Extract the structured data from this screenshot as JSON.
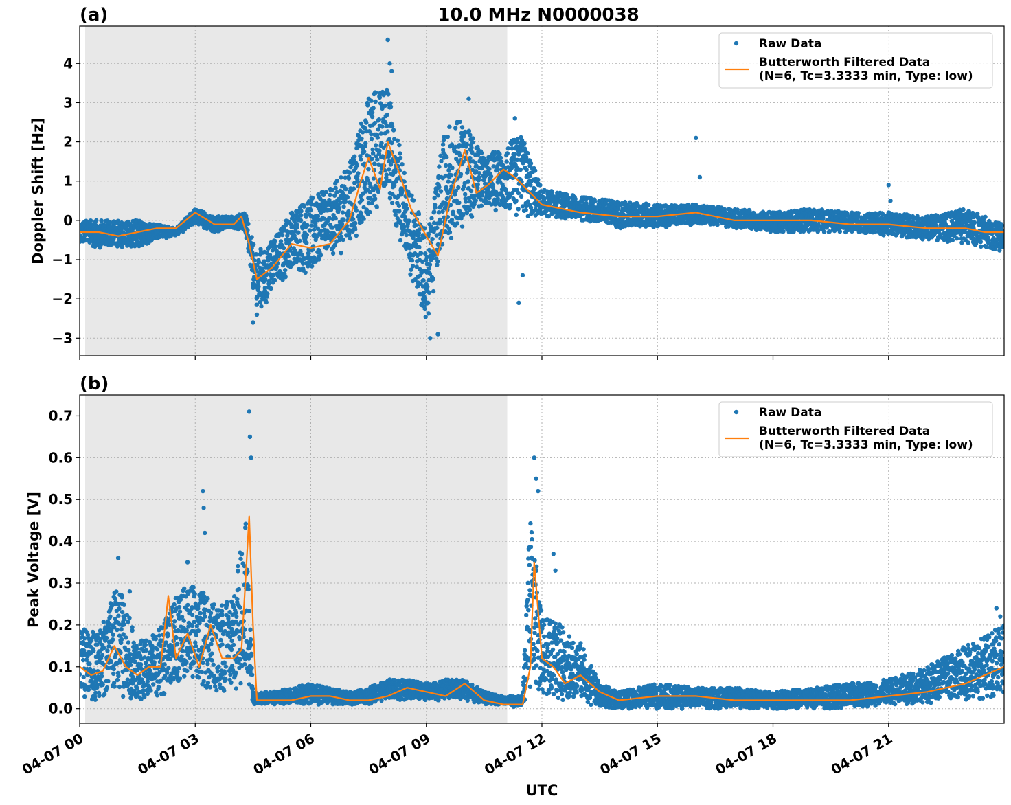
{
  "figure": {
    "title": "10.0 MHz N0000038",
    "xlabel": "UTC"
  },
  "colors": {
    "raw": "#1f77b4",
    "filtered": "#ff7f0e",
    "shade": "#e8e8e8",
    "grid": "#b0b0b0"
  },
  "chart_data": [
    {
      "type": "scatter",
      "panel_label": "(a)",
      "title": "10.0 MHz N0000038",
      "xlabel": "",
      "ylabel": "Doppler Shift [Hz]",
      "xlim": [
        0,
        24
      ],
      "ylim": [
        -3.45,
        4.95
      ],
      "yticks": [
        -3,
        -2,
        -1,
        0,
        1,
        2,
        3,
        4
      ],
      "ytick_labels": [
        "−3",
        "−2",
        "−1",
        "0",
        "1",
        "2",
        "3",
        "4"
      ],
      "xticks": [
        0,
        3,
        6,
        9,
        12,
        15,
        18,
        21
      ],
      "xtick_labels": [
        "",
        "",
        "",
        "",
        "",
        "",
        "",
        ""
      ],
      "grid": true,
      "shaded_interval": [
        0,
        11.1
      ],
      "legend": {
        "position": "top-right",
        "raw_label": "Raw Data",
        "filtered_label_line1": "Butterworth Filtered Data",
        "filtered_label_line2": "(N=6, Tc=3.3333 min, Type: low)"
      },
      "series": [
        {
          "name": "Raw Data",
          "kind": "band",
          "x": [
            0,
            0.5,
            1,
            1.5,
            2,
            2.5,
            3,
            3.5,
            4,
            4.3,
            4.6,
            5,
            5.5,
            6,
            6.5,
            7,
            7.5,
            8,
            8.5,
            9,
            9.5,
            10,
            10.5,
            11,
            11.5,
            12,
            13,
            14,
            15,
            16,
            17,
            18,
            19,
            20,
            21,
            22,
            23,
            24
          ],
          "upper": [
            0,
            0,
            0,
            0,
            -0.1,
            -0.2,
            0.3,
            0.1,
            0.1,
            0.2,
            -0.8,
            -0.5,
            0.2,
            0.6,
            0.8,
            1.4,
            3.2,
            3.4,
            1.0,
            -0.3,
            2.4,
            2.6,
            1.6,
            1.9,
            2.2,
            0.8,
            0.6,
            0.5,
            0.4,
            0.4,
            0.3,
            0.2,
            0.3,
            0.2,
            0.2,
            0.1,
            0.3,
            -0.1
          ],
          "lower": [
            -0.6,
            -0.7,
            -0.7,
            -0.7,
            -0.5,
            -0.4,
            -0.1,
            -0.3,
            -0.2,
            -0.3,
            -2.4,
            -1.9,
            -1.3,
            -1.4,
            -0.9,
            -0.8,
            -0.1,
            0.6,
            -1.2,
            -2.6,
            -0.6,
            -0.1,
            0.3,
            0.2,
            0.0,
            0.1,
            0.0,
            -0.2,
            -0.2,
            -0.1,
            -0.2,
            -0.3,
            -0.3,
            -0.3,
            -0.4,
            -0.5,
            -0.6,
            -0.8
          ]
        },
        {
          "name": "Raw Data",
          "kind": "points",
          "x": [
            8.0,
            8.05,
            8.1,
            9.1,
            9.3,
            10.1,
            11.3,
            11.4,
            11.5,
            16.0,
            16.1,
            21.0,
            21.05,
            4.5,
            4.6
          ],
          "y": [
            4.6,
            4.0,
            3.8,
            -3.0,
            -2.9,
            3.1,
            2.6,
            -2.1,
            -1.4,
            2.1,
            1.1,
            0.9,
            0.5,
            -2.6,
            -2.4
          ]
        },
        {
          "name": "Butterworth Filtered Data",
          "kind": "line",
          "x": [
            0,
            0.5,
            1,
            1.5,
            2,
            2.5,
            3,
            3.5,
            4,
            4.2,
            4.4,
            4.6,
            5,
            5.5,
            6,
            6.5,
            7,
            7.3,
            7.5,
            7.8,
            8.0,
            8.3,
            8.6,
            9.0,
            9.3,
            9.6,
            10.0,
            10.3,
            10.6,
            11.0,
            11.3,
            11.6,
            12.0,
            13,
            14,
            15,
            16,
            17,
            18,
            19,
            20,
            21,
            22,
            23,
            23.5,
            24
          ],
          "y": [
            -0.3,
            -0.3,
            -0.4,
            -0.3,
            -0.2,
            -0.2,
            0.2,
            -0.1,
            -0.1,
            0.1,
            -0.6,
            -1.5,
            -1.2,
            -0.6,
            -0.7,
            -0.6,
            0.0,
            1.0,
            1.6,
            0.8,
            2.0,
            1.2,
            0.3,
            -0.4,
            -0.9,
            0.5,
            1.8,
            0.7,
            0.9,
            1.3,
            1.1,
            0.8,
            0.4,
            0.2,
            0.1,
            0.1,
            0.2,
            0.0,
            0.0,
            0.0,
            -0.1,
            -0.1,
            -0.2,
            -0.2,
            -0.3,
            -0.3
          ]
        }
      ]
    },
    {
      "type": "scatter",
      "panel_label": "(b)",
      "title": "",
      "xlabel": "UTC",
      "ylabel": "Peak Voltage [V]",
      "xlim": [
        0,
        24
      ],
      "ylim": [
        -0.035,
        0.75
      ],
      "yticks": [
        0.0,
        0.1,
        0.2,
        0.3,
        0.4,
        0.5,
        0.6,
        0.7
      ],
      "ytick_labels": [
        "0.0",
        "0.1",
        "0.2",
        "0.3",
        "0.4",
        "0.5",
        "0.6",
        "0.7"
      ],
      "xticks": [
        0,
        3,
        6,
        9,
        12,
        15,
        18,
        21
      ],
      "xtick_labels": [
        "04-07 00",
        "04-07 03",
        "04-07 06",
        "04-07 09",
        "04-07 12",
        "04-07 15",
        "04-07 18",
        "04-07 21"
      ],
      "grid": true,
      "shaded_interval": [
        0,
        11.1
      ],
      "legend": {
        "position": "top-right",
        "raw_label": "Raw Data",
        "filtered_label_line1": "Butterworth Filtered Data",
        "filtered_label_line2": "(N=6, Tc=3.3333 min, Type: low)"
      },
      "series": [
        {
          "name": "Raw Data",
          "kind": "band",
          "x": [
            0,
            0.5,
            1,
            1.5,
            2,
            2.5,
            3,
            3.5,
            4,
            4.3,
            4.5,
            5,
            5.5,
            6,
            6.5,
            7,
            7.5,
            8,
            8.5,
            9,
            9.5,
            10,
            10.5,
            11,
            11.5,
            11.7,
            12,
            12.5,
            13,
            13.5,
            14,
            15,
            16,
            17,
            18,
            19,
            20,
            21,
            22,
            23,
            24
          ],
          "upper": [
            0.2,
            0.18,
            0.3,
            0.16,
            0.18,
            0.28,
            0.3,
            0.25,
            0.26,
            0.5,
            0.04,
            0.04,
            0.05,
            0.06,
            0.05,
            0.04,
            0.05,
            0.07,
            0.07,
            0.06,
            0.07,
            0.07,
            0.04,
            0.03,
            0.03,
            0.48,
            0.22,
            0.2,
            0.16,
            0.06,
            0.04,
            0.06,
            0.05,
            0.05,
            0.04,
            0.05,
            0.06,
            0.07,
            0.1,
            0.15,
            0.2
          ],
          "lower": [
            0.02,
            0.02,
            0.03,
            0.02,
            0.03,
            0.04,
            0.05,
            0.04,
            0.04,
            0.06,
            0.01,
            0.01,
            0.01,
            0.01,
            0.01,
            0.01,
            0.01,
            0.02,
            0.02,
            0.02,
            0.02,
            0.02,
            0.01,
            0.01,
            0.0,
            0.02,
            0.03,
            0.02,
            0.02,
            0.0,
            0.0,
            0.0,
            0.0,
            0.0,
            0.0,
            0.0,
            0.0,
            0.01,
            0.01,
            0.02,
            0.03
          ]
        },
        {
          "name": "Raw Data",
          "kind": "points",
          "x": [
            4.4,
            4.42,
            4.45,
            3.2,
            3.22,
            3.25,
            1.0,
            1.3,
            2.8,
            11.8,
            11.85,
            11.9,
            12.3,
            12.35,
            23.8,
            23.9
          ],
          "y": [
            0.71,
            0.65,
            0.6,
            0.52,
            0.48,
            0.42,
            0.36,
            0.28,
            0.35,
            0.6,
            0.55,
            0.52,
            0.37,
            0.33,
            0.24,
            0.22
          ]
        },
        {
          "name": "Butterworth Filtered Data",
          "kind": "line",
          "x": [
            0,
            0.3,
            0.6,
            0.9,
            1.2,
            1.5,
            1.8,
            2.1,
            2.3,
            2.5,
            2.8,
            3.1,
            3.4,
            3.7,
            4.0,
            4.2,
            4.4,
            4.5,
            4.6,
            5,
            5.5,
            6,
            6.5,
            7,
            7.5,
            8,
            8.5,
            9,
            9.5,
            10,
            10.5,
            11,
            11.5,
            11.7,
            11.8,
            12.0,
            12.3,
            12.6,
            13.0,
            13.5,
            14,
            15,
            16,
            17,
            18,
            19,
            20,
            21,
            22,
            23,
            23.5,
            24
          ],
          "y": [
            0.1,
            0.08,
            0.09,
            0.15,
            0.1,
            0.08,
            0.1,
            0.1,
            0.27,
            0.12,
            0.18,
            0.1,
            0.2,
            0.12,
            0.12,
            0.14,
            0.46,
            0.2,
            0.02,
            0.02,
            0.02,
            0.03,
            0.03,
            0.02,
            0.02,
            0.03,
            0.05,
            0.04,
            0.03,
            0.06,
            0.02,
            0.01,
            0.01,
            0.1,
            0.35,
            0.12,
            0.1,
            0.06,
            0.08,
            0.04,
            0.02,
            0.03,
            0.03,
            0.02,
            0.02,
            0.02,
            0.02,
            0.03,
            0.04,
            0.06,
            0.08,
            0.1
          ]
        }
      ]
    }
  ]
}
